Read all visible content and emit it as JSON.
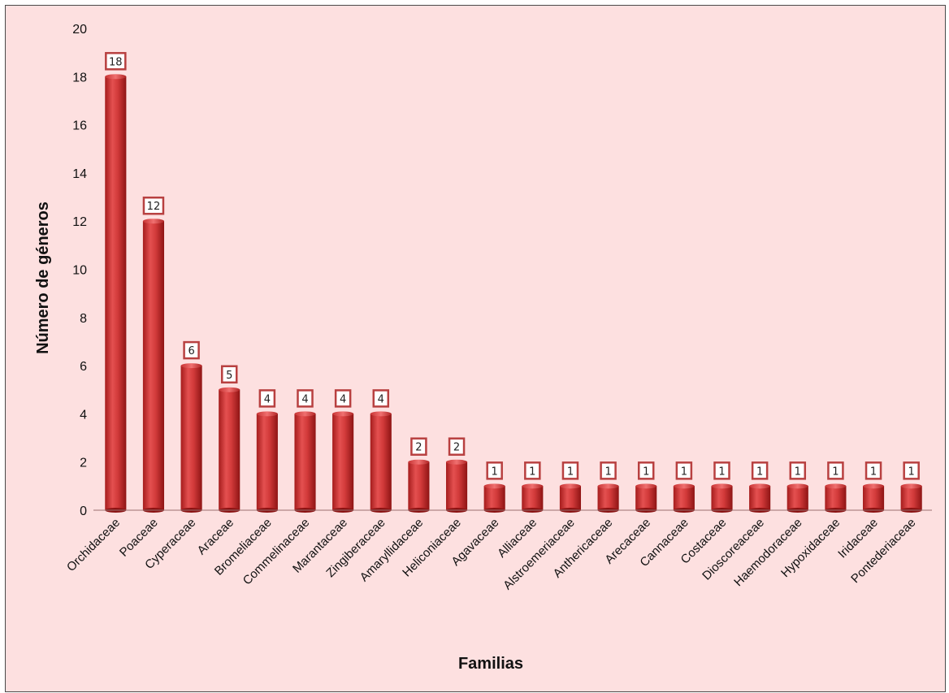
{
  "chart_data": {
    "type": "bar",
    "title": "",
    "xlabel": "Familias",
    "ylabel": "Número de géneros",
    "ylim": [
      0,
      20
    ],
    "yticks": [
      0,
      2,
      4,
      6,
      8,
      10,
      12,
      14,
      16,
      18,
      20
    ],
    "grid": false,
    "legend": "none",
    "bar_color": "#d23a3a",
    "background_color": "#fde0e0",
    "categories": [
      "Orchidaceae",
      "Poaceae",
      "Cyperaceae",
      "Araceae",
      "Bromeliaceae",
      "Commelinaceae",
      "Marantaceae",
      "Zingiberaceae",
      "Amaryllidaceae",
      "Heliconiaceae",
      "Agavaceae",
      "Alliaceae",
      "Alstroemeriaceae",
      "Anthericaceae",
      "Arecaceae",
      "Cannaceae",
      "Costaceae",
      "Dioscoreaceae",
      "Haemodoraceae",
      "Hypoxidaceae",
      "Iridaceae",
      "Pontederiaceae"
    ],
    "values": [
      18,
      12,
      6,
      5,
      4,
      4,
      4,
      4,
      2,
      2,
      1,
      1,
      1,
      1,
      1,
      1,
      1,
      1,
      1,
      1,
      1,
      1
    ]
  }
}
